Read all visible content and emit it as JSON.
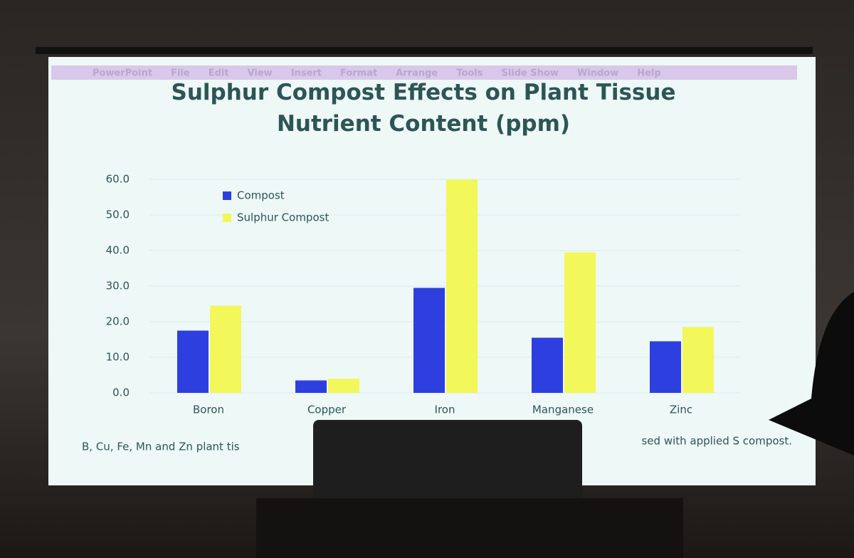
{
  "menu_bar": [
    "PowerPoint",
    "File",
    "Edit",
    "View",
    "Insert",
    "Format",
    "Arrange",
    "Tools",
    "Slide Show",
    "Window",
    "Help"
  ],
  "caption": [
    "B, Cu, Fe, Mn and Zn plant tis",
    "sed with applied S compost."
  ],
  "chart_data": {
    "type": "bar",
    "title": "Sulphur Compost Effects on Plant Tissue Nutrient Content (ppm)",
    "categories": [
      "Boron",
      "Copper",
      "Iron",
      "Manganese",
      "Zinc"
    ],
    "series": [
      {
        "name": "Compost",
        "color": "#2e3fe0",
        "values": [
          17.5,
          3.5,
          29.5,
          15.5,
          14.5
        ]
      },
      {
        "name": "Sulphur Compost",
        "color": "#f2f75a",
        "values": [
          24.5,
          4,
          60,
          39.5,
          18.5
        ]
      }
    ],
    "ylim": [
      0,
      62
    ],
    "yticks": [
      {
        "value": 0,
        "label": "0.0"
      },
      {
        "value": 10,
        "label": "10.0"
      },
      {
        "value": 20,
        "label": "20.0"
      },
      {
        "value": 30,
        "label": "30.0"
      },
      {
        "value": 40,
        "label": "40.0"
      },
      {
        "value": 50,
        "label": "50.0"
      },
      {
        "value": 60,
        "label": "60.0"
      }
    ],
    "grid": true,
    "legend": "top-left"
  }
}
